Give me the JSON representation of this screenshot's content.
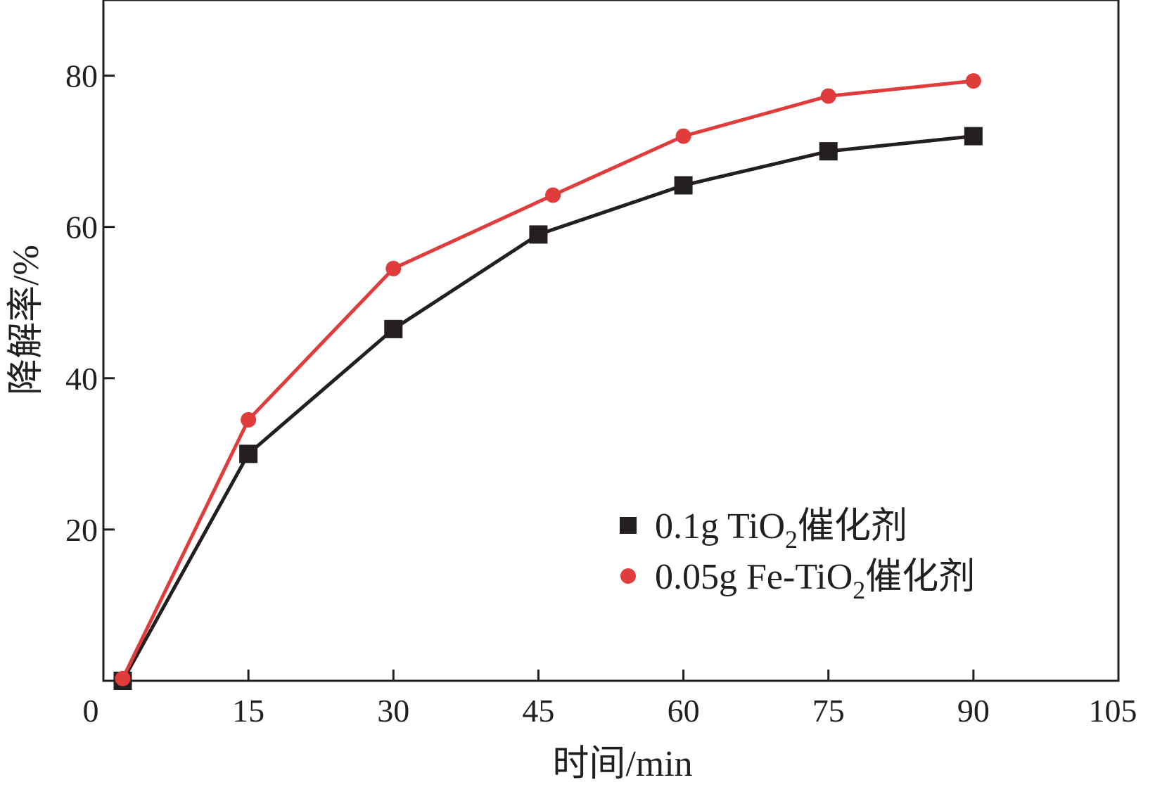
{
  "chart_data": {
    "type": "line",
    "xlabel": "时间/min",
    "ylabel": "降解率/%",
    "xlim": [
      0,
      105
    ],
    "ylim": [
      0,
      90
    ],
    "xticks": [
      0,
      15,
      30,
      45,
      60,
      75,
      90,
      105
    ],
    "yticks": [
      20,
      40,
      60,
      80
    ],
    "grid": false,
    "legend_position": "bottom-right",
    "series": [
      {
        "name_parts": {
          "pre": "0.1g TiO",
          "sub": "2",
          "post": "催化剂"
        },
        "color": "#231f20",
        "marker": "square",
        "x": [
          2,
          15,
          30,
          45,
          60,
          75,
          90
        ],
        "y": [
          0,
          30,
          46.5,
          59,
          65.5,
          70,
          72
        ]
      },
      {
        "name_parts": {
          "pre": "0.05g Fe-TiO",
          "sub": "2",
          "post": "催化剂"
        },
        "color": "#e03c3c",
        "marker": "circle",
        "x": [
          2,
          15,
          30,
          46.5,
          60,
          75,
          90
        ],
        "y": [
          0.3,
          34.5,
          54.5,
          64.2,
          72,
          77.3,
          79.3
        ]
      }
    ]
  }
}
